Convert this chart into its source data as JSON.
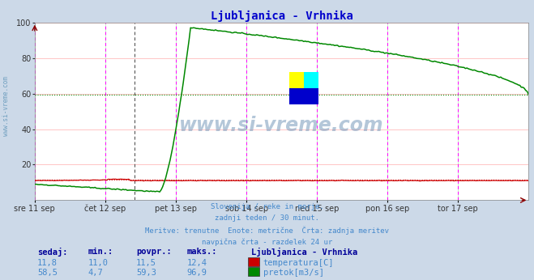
{
  "title": "Ljubljanica - Vrhnika",
  "title_color": "#0000cc",
  "bg_color": "#ccd9e8",
  "plot_bg_color": "#ffffff",
  "grid_color_h": "#ffbbbb",
  "grid_color_v": "#bbffbb",
  "xlim": [
    0,
    336
  ],
  "ylim": [
    0,
    100
  ],
  "yticks": [
    0,
    20,
    40,
    60,
    80,
    100
  ],
  "day_labels": [
    "sre 11 sep",
    "čet 12 sep",
    "pet 13 sep",
    "sob 14 sep",
    "ned 15 sep",
    "pon 16 sep",
    "tor 17 sep"
  ],
  "day_positions": [
    0,
    48,
    96,
    144,
    192,
    240,
    288
  ],
  "magenta_vlines": [
    0,
    48,
    96,
    144,
    192,
    240,
    288,
    336
  ],
  "dashed_vline_x": 68,
  "temp_color": "#cc0000",
  "flow_color": "#008800",
  "temp_avg_value": 11.5,
  "flow_avg_value": 59.3,
  "watermark_text": "www.si-vreme.com",
  "footer_lines": [
    "Slovenija / reke in morje.",
    "zadnji teden / 30 minut.",
    "Meritve: trenutne  Enote: metrične  Črta: zadnja meritev",
    "navpična črta - razdelek 24 ur"
  ],
  "footer_color": "#4488cc",
  "table_header": [
    "sedaj:",
    "min.:",
    "povpr.:",
    "maks.:"
  ],
  "table_bold_color": "#000099",
  "table_normal_color": "#4488cc",
  "temp_row": [
    "11,8",
    "11,0",
    "11,5",
    "12,4"
  ],
  "flow_row": [
    "58,5",
    "4,7",
    "59,3",
    "96,9"
  ],
  "legend_title": "Ljubljanica - Vrhnika",
  "legend_temp": "temperatura[C]",
  "legend_flow": "pretok[m3/s]",
  "left_label": "www.si-vreme.com"
}
